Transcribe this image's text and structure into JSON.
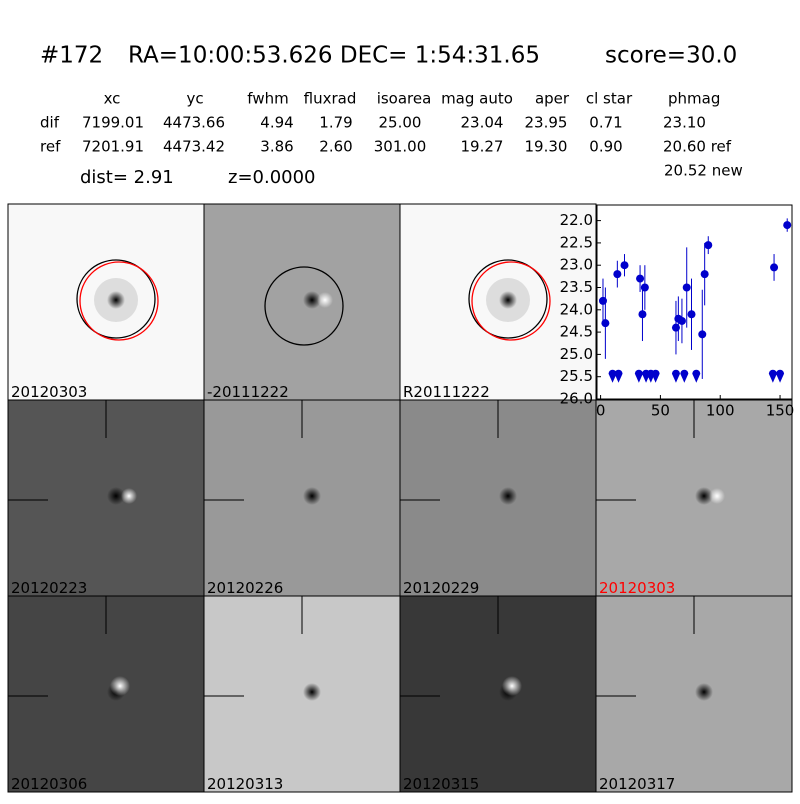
{
  "header": {
    "id": "#172",
    "coords": "RA=10:00:53.626 DEC= 1:54:31.65",
    "score": "score=30.0"
  },
  "table": {
    "columns": [
      "xc",
      "yc",
      "fwhm",
      "fluxrad",
      "isoarea",
      "mag auto",
      "aper",
      "cl star",
      "phmag"
    ],
    "rows": [
      {
        "label": "dif",
        "cells": [
          "7199.01",
          "4473.66",
          "4.94",
          "1.79",
          "25.00",
          "23.04",
          "23.95",
          "0.71",
          "23.10"
        ]
      },
      {
        "label": "ref",
        "cells": [
          "7201.91",
          "4473.42",
          "3.86",
          "2.60",
          "301.00",
          "19.27",
          "19.30",
          "0.90",
          "20.60 ref"
        ]
      }
    ],
    "extra": "20.52 new"
  },
  "dist": "dist=  2.91",
  "z": "z=0.0000",
  "panels": [
    {
      "label": "20120303",
      "color": "#000000"
    },
    {
      "label": "-20111222",
      "color": "#000000"
    },
    {
      "label": "R20111222",
      "color": "#000000"
    },
    {
      "label": "20120223",
      "color": "#000000"
    },
    {
      "label": "20120226",
      "color": "#000000"
    },
    {
      "label": "20120229",
      "color": "#000000"
    },
    {
      "label": "20120303",
      "color": "#ff0000"
    },
    {
      "label": "20120306",
      "color": "#000000"
    },
    {
      "label": "20120313",
      "color": "#000000"
    },
    {
      "label": "20120315",
      "color": "#000000"
    },
    {
      "label": "20120317",
      "color": "#000000"
    }
  ],
  "chart_data": {
    "type": "scatter",
    "xlim": [
      -3,
      160
    ],
    "xticks": [
      0,
      50,
      100,
      150
    ],
    "ylim": [
      26.0,
      21.65
    ],
    "yticks": [
      {
        "value": 22,
        "label": "22.0"
      },
      22.5,
      {
        "value": 23,
        "label": "23.0"
      },
      23.5,
      {
        "value": 24,
        "label": "24.0"
      },
      24.5,
      {
        "value": 25,
        "label": "25.0"
      },
      25.5,
      {
        "value": 26,
        "label": "26.0"
      }
    ],
    "series": [
      {
        "color": "#0000cc",
        "marker": "circle",
        "x": [
          2,
          4,
          14,
          20,
          33,
          35,
          37,
          63,
          65,
          68,
          72,
          76,
          85,
          87,
          90,
          145,
          156
        ],
        "values": [
          23.8,
          24.3,
          23.2,
          23.0,
          23.3,
          24.1,
          23.5,
          24.4,
          24.2,
          24.25,
          23.5,
          24.1,
          24.55,
          23.2,
          22.55,
          23.05,
          22.1
        ],
        "errors": [
          0.5,
          0.8,
          0.3,
          0.25,
          0.3,
          0.6,
          0.5,
          0.6,
          0.5,
          0.5,
          0.9,
          0.8,
          1.0,
          0.7,
          0.2,
          0.3,
          0.15
        ]
      },
      {
        "color": "#0000cc",
        "marker": "limit",
        "x": [
          10,
          15,
          32,
          38,
          42,
          46,
          63,
          70,
          80,
          144,
          150
        ],
        "values": [
          25.5,
          25.5,
          25.5,
          25.5,
          25.5,
          25.5,
          25.5,
          25.5,
          25.5,
          25.5,
          25.5
        ]
      }
    ]
  }
}
